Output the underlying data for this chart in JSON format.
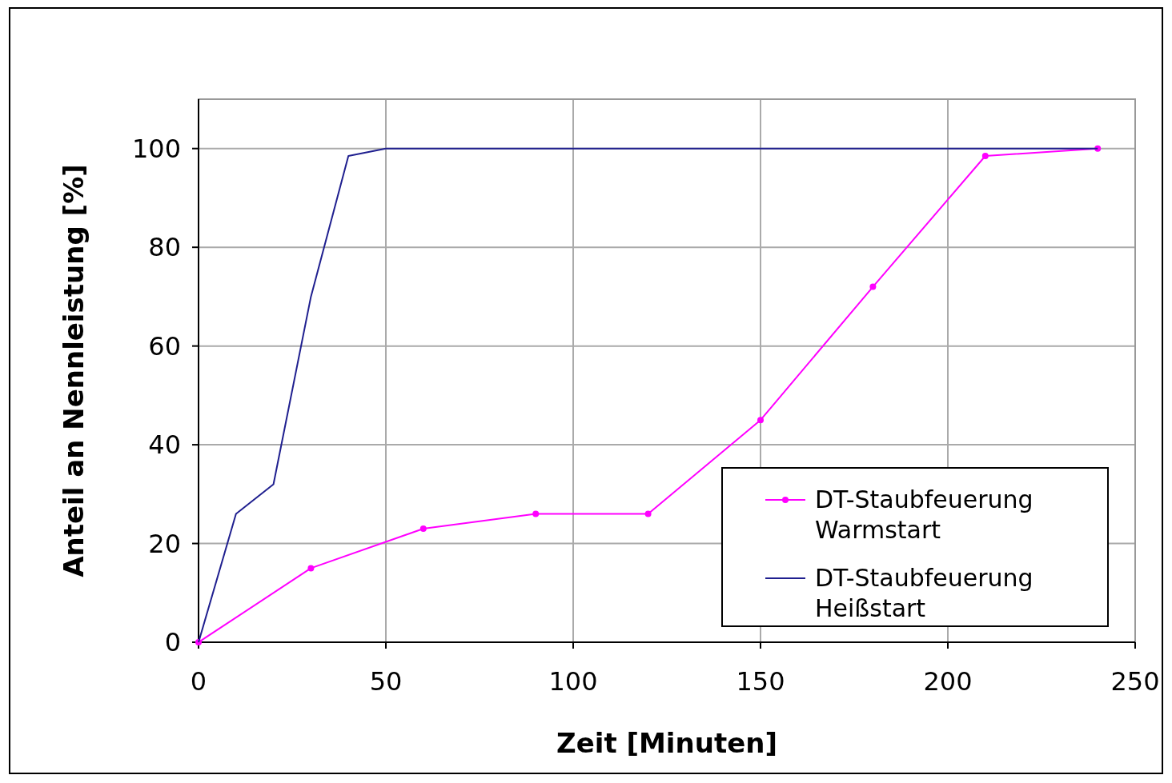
{
  "chart_data": {
    "type": "line",
    "xlabel": "Zeit [Minuten]",
    "ylabel": "Anteil an Nennleistung [%]",
    "xlim": [
      0,
      250
    ],
    "xticks": [
      0,
      50,
      100,
      150,
      200,
      250
    ],
    "ylim": [
      0,
      110
    ],
    "yticks": [
      0,
      20,
      40,
      60,
      80,
      100
    ],
    "grid": true,
    "legend": "bottom right",
    "series": [
      {
        "name": "DT-Staubfeuerung Warmstart",
        "color": "#ff00ff",
        "marker": "circle",
        "x": [
          0,
          30,
          60,
          90,
          120,
          150,
          180,
          210,
          240
        ],
        "values": [
          0,
          15,
          23,
          26,
          26,
          45,
          72,
          98.5,
          100
        ]
      },
      {
        "name": "DT-Staubfeuerung Heißstart",
        "color": "#1f1f8f",
        "marker": "none",
        "x": [
          0,
          10,
          20,
          30,
          40,
          50,
          240
        ],
        "values": [
          0,
          26,
          32,
          70,
          98.5,
          100,
          100
        ]
      }
    ]
  }
}
